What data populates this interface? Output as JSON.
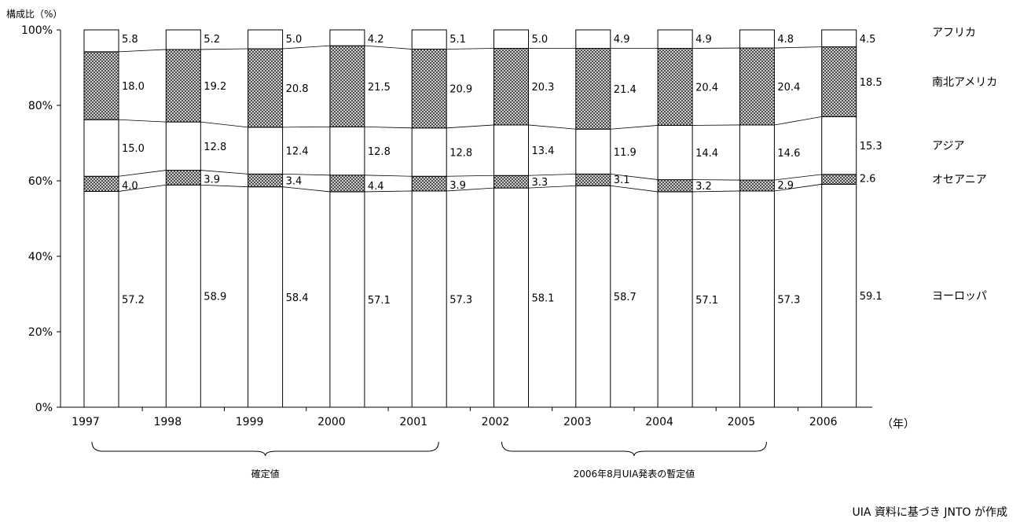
{
  "chart_data": {
    "type": "bar",
    "stacked": true,
    "ylabel": "構成比（%）",
    "xunit": "（年）",
    "ylim": [
      0,
      100
    ],
    "yticks": [
      "0%",
      "20%",
      "40%",
      "60%",
      "80%",
      "100%"
    ],
    "categories": [
      "1997",
      "1998",
      "1999",
      "2000",
      "2001",
      "2002",
      "2003",
      "2004",
      "2005",
      "2006"
    ],
    "series": [
      {
        "name": "ヨーロッパ",
        "values": [
          57.2,
          58.9,
          58.4,
          57.1,
          57.3,
          58.1,
          58.7,
          57.1,
          57.3,
          59.1
        ],
        "pattern": "white"
      },
      {
        "name": "オセアニア",
        "values": [
          4.0,
          3.9,
          3.4,
          4.4,
          3.9,
          3.3,
          3.1,
          3.2,
          2.9,
          2.6
        ],
        "pattern": "crosshatch"
      },
      {
        "name": "アジア",
        "values": [
          15.0,
          12.8,
          12.4,
          12.8,
          12.8,
          13.4,
          11.9,
          14.4,
          14.6,
          15.3
        ],
        "pattern": "white"
      },
      {
        "name": "南北アメリカ",
        "values": [
          18.0,
          19.2,
          20.8,
          21.5,
          20.9,
          20.3,
          21.4,
          20.4,
          20.4,
          18.5
        ],
        "pattern": "crosshatch"
      },
      {
        "name": "アフリカ",
        "values": [
          5.8,
          5.2,
          5.0,
          4.2,
          5.1,
          5.0,
          4.9,
          4.9,
          4.8,
          4.5
        ],
        "pattern": "white"
      }
    ],
    "value_labels": [
      [
        "57.2",
        "58.9",
        "58.4",
        "57.1",
        "57.3",
        "58.1",
        "58.7",
        "57.1",
        "57.3",
        "59.1"
      ],
      [
        "4.0",
        "3.9",
        "3.4",
        "4.4",
        "3.9",
        "3.3",
        "3.1",
        "3.2",
        "2.9",
        "2.6"
      ],
      [
        "15.0",
        "12.8",
        "12.4",
        "12.8",
        "12.8",
        "13.4",
        "11.9",
        "14.4",
        "14.6",
        "15.3"
      ],
      [
        "18.0",
        "19.2",
        "20.8",
        "21.5",
        "20.9",
        "20.3",
        "21.4",
        "20.4",
        "20.4",
        "18.5"
      ],
      [
        "5.8",
        "5.2",
        "5.0",
        "4.2",
        "5.1",
        "5.0",
        "4.9",
        "4.9",
        "4.8",
        "4.5"
      ]
    ],
    "brackets": [
      {
        "label": "確定値",
        "from": "1997",
        "to": "2001"
      },
      {
        "label": "2006年8月UIA発表の暫定値",
        "from": "2002",
        "to": "2005"
      }
    ],
    "source": "UIA 資料に基づき JNTO が作成",
    "colors": {
      "crosshatch": "#888888",
      "line": "#000000",
      "background": "#ffffff"
    },
    "grid": false,
    "legend_position": "right"
  }
}
